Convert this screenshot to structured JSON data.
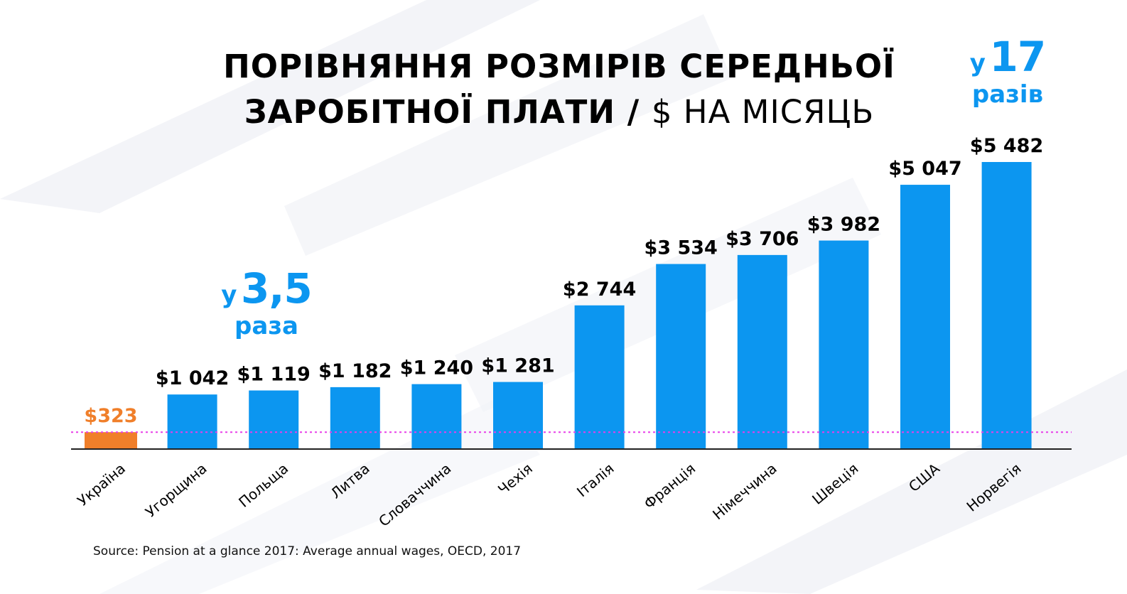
{
  "title": {
    "line1": "ПОРІВНЯННЯ РОЗМІРІВ СЕРЕДНЬОЇ",
    "line2_main": "ЗАРОБІТНОЇ ПЛАТИ",
    "line2_sep": "/",
    "line2_unit": "$ НА МІСЯЦЬ"
  },
  "callouts": {
    "low": {
      "prefix": "у",
      "number": "3,5",
      "word": "раза"
    },
    "high": {
      "prefix": "у",
      "number": "17",
      "word": "разів"
    }
  },
  "source": "Source: Pension at a glance 2017: Average annual wages, OECD, 2017",
  "colors": {
    "bar": "#0c96f0",
    "highlight": "#f07f2a",
    "callout": "#0c96f0",
    "reference_line": "#e83ee8",
    "axis": "#222222"
  },
  "chart_data": {
    "type": "bar",
    "categories": [
      "Україна",
      "Угорщина",
      "Польща",
      "Литва",
      "Словаччина",
      "Чехія",
      "Італія",
      "Франція",
      "Німеччина",
      "Швеція",
      "США",
      "Норвегія"
    ],
    "values": [
      323,
      1042,
      1119,
      1182,
      1240,
      1281,
      2744,
      3534,
      3706,
      3982,
      5047,
      5482
    ],
    "data_labels": [
      "$323",
      "$1 042",
      "$1 119",
      "$1 182",
      "$1 240",
      "$1 281",
      "$2 744",
      "$3 534",
      "$3 706",
      "$3 982",
      "$5 047",
      "$5 482"
    ],
    "highlight_index": 0,
    "reference_line_value": 323,
    "ylim": [
      0,
      5482
    ],
    "title": "ПОРІВНЯННЯ РОЗМІРІВ СЕРЕДНЬОЇ ЗАРОБІТНОЇ ПЛАТИ / $ НА МІСЯЦЬ",
    "xlabel": "",
    "ylabel": "",
    "grid": false,
    "legend": "none"
  }
}
